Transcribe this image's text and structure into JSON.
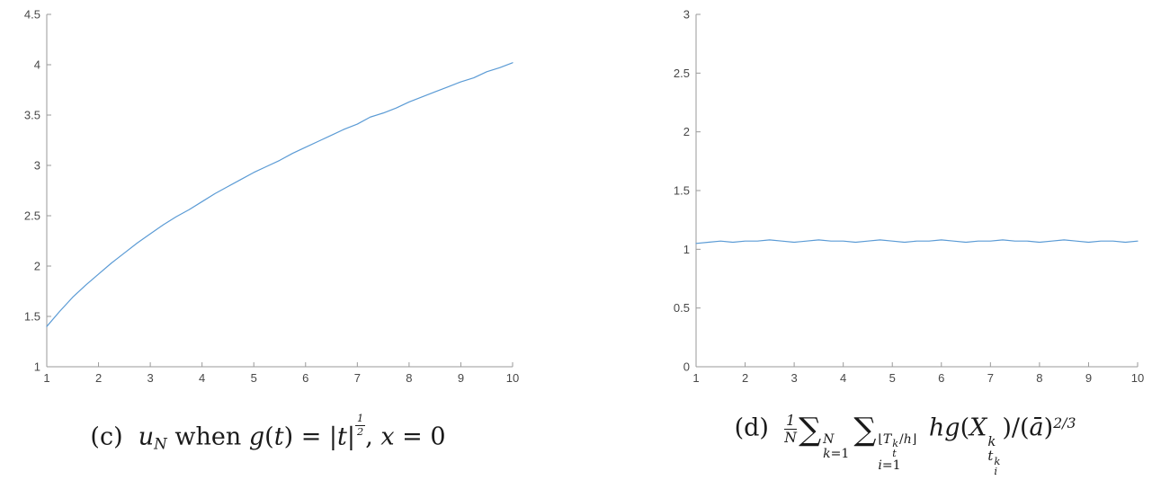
{
  "figure": {
    "background": "#ffffff",
    "line_color": "#5b9bd5",
    "axis_color": "#9a9a9a",
    "tick_label_color": "#474747",
    "tick_font_size": 13
  },
  "chart_data": [
    {
      "id": "c",
      "type": "line",
      "title": "",
      "xlabel": "",
      "ylabel": "",
      "legend": null,
      "grid": false,
      "xlim": [
        1,
        10
      ],
      "ylim": [
        1,
        4.5
      ],
      "xticks": [
        1,
        2,
        3,
        4,
        5,
        6,
        7,
        8,
        9,
        10
      ],
      "yticks": [
        1,
        1.5,
        2,
        2.5,
        3,
        3.5,
        4,
        4.5
      ],
      "x": [
        1,
        1.25,
        1.5,
        1.75,
        2,
        2.25,
        2.5,
        2.75,
        3,
        3.25,
        3.5,
        3.75,
        4,
        4.25,
        4.5,
        4.75,
        5,
        5.25,
        5.5,
        5.75,
        6,
        6.25,
        6.5,
        6.75,
        7,
        7.25,
        7.5,
        7.75,
        8,
        8.25,
        8.5,
        8.75,
        9,
        9.25,
        9.5,
        9.75,
        10
      ],
      "y": [
        1.4,
        1.55,
        1.69,
        1.81,
        1.92,
        2.03,
        2.13,
        2.23,
        2.32,
        2.41,
        2.49,
        2.56,
        2.64,
        2.72,
        2.79,
        2.86,
        2.93,
        2.99,
        3.05,
        3.12,
        3.18,
        3.24,
        3.3,
        3.36,
        3.41,
        3.48,
        3.52,
        3.57,
        3.63,
        3.68,
        3.73,
        3.78,
        3.83,
        3.87,
        3.93,
        3.97,
        4.02
      ],
      "caption_text": "(c) u_N when g(t) = |t|^{1/2}, x = 0"
    },
    {
      "id": "d",
      "type": "line",
      "title": "",
      "xlabel": "",
      "ylabel": "",
      "legend": null,
      "grid": false,
      "xlim": [
        1,
        10
      ],
      "ylim": [
        0,
        3
      ],
      "xticks": [
        1,
        2,
        3,
        4,
        5,
        6,
        7,
        8,
        9,
        10
      ],
      "yticks": [
        0,
        0.5,
        1,
        1.5,
        2,
        2.5,
        3
      ],
      "x": [
        1,
        1.25,
        1.5,
        1.75,
        2,
        2.25,
        2.5,
        2.75,
        3,
        3.25,
        3.5,
        3.75,
        4,
        4.25,
        4.5,
        4.75,
        5,
        5.25,
        5.5,
        5.75,
        6,
        6.25,
        6.5,
        6.75,
        7,
        7.25,
        7.5,
        7.75,
        8,
        8.25,
        8.5,
        8.75,
        9,
        9.25,
        9.5,
        9.75,
        10
      ],
      "y": [
        1.05,
        1.06,
        1.07,
        1.06,
        1.07,
        1.07,
        1.08,
        1.07,
        1.06,
        1.07,
        1.08,
        1.07,
        1.07,
        1.06,
        1.07,
        1.08,
        1.07,
        1.06,
        1.07,
        1.07,
        1.08,
        1.07,
        1.06,
        1.07,
        1.07,
        1.08,
        1.07,
        1.07,
        1.06,
        1.07,
        1.08,
        1.07,
        1.06,
        1.07,
        1.07,
        1.06,
        1.07
      ],
      "caption_text": "(d) (1/N) ∑_{k=1}^{N} ∑_{i=1}^{⌊T_t^k/h⌋} hg(X_{t_i^k}^k)/(ā)^{2/3}"
    }
  ],
  "captions": {
    "c_html": "(c)&nbsp;&nbsp;<span class='it'>u</span><span class='sub it'>N</span> when <span class='it'>g</span>(<span class='it'>t</span>) = |<span class='it'>t</span>|<span class='sfrac frac-exp'><span class='num'>1</span><span class='den'>2</span></span>, <span class='it'>x</span> = 0",
    "d_html": "(d)&nbsp;&nbsp;<span class='sfrac frac-main'><span class='num'>1</span><span class='den'>N</span></span><span class='sum'>∑</span><span class='stack lim'><span class='it'>N</span><span><span class='it'>k</span>=1</span></span><span class='sum'>∑</span><span class='stack lim'><span>⌊<span class='it'>T</span><span class='stack ss'><span class='it'>k</span><span class='it'>t</span></span>/<span class='it'>h</span>⌋</span><span><span class='it'>i</span>=1</span></span> <span class='it'>hg</span>(<span class='it'>X</span><span class='stack xs'><span class='it'>k</span><span><span class='it'>t</span><span class='stack ss2'><span class='it'>k</span><span class='it'>i</span></span></span></span>)/(<span class='it'>ā</span>)<span class='sup23'>2/3</span>"
  }
}
